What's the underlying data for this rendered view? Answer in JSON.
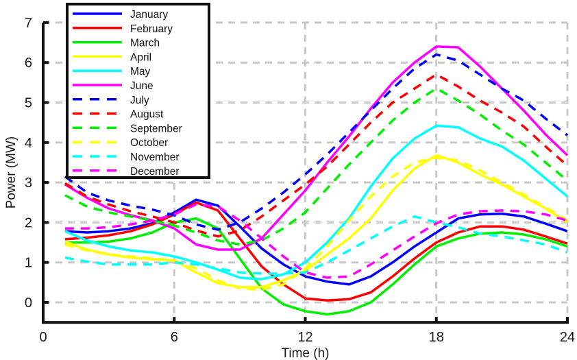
{
  "chart_data": {
    "type": "line",
    "title": "",
    "xlabel": "Time (h)",
    "ylabel": "Power (MW)",
    "xlim": [
      0,
      24
    ],
    "ylim": [
      -0.5,
      7
    ],
    "xticks": [
      0,
      6,
      12,
      18,
      24
    ],
    "yticks": [
      0,
      1,
      2,
      3,
      4,
      5,
      6,
      7
    ],
    "grid": true,
    "legend_position": "top-left",
    "x": [
      1,
      2,
      3,
      4,
      5,
      6,
      7,
      8,
      9,
      10,
      11,
      12,
      13,
      14,
      15,
      16,
      17,
      18,
      19,
      20,
      21,
      22,
      23,
      24
    ],
    "series": [
      {
        "name": "January",
        "color": "#0000ff",
        "style": "solid",
        "values": [
          1.78,
          1.75,
          1.78,
          1.85,
          1.98,
          2.25,
          2.57,
          2.42,
          1.9,
          1.35,
          0.95,
          0.65,
          0.52,
          0.45,
          0.65,
          1.0,
          1.4,
          1.75,
          2.1,
          2.2,
          2.22,
          2.15,
          1.97,
          1.78
        ]
      },
      {
        "name": "February",
        "color": "#ff0000",
        "style": "solid",
        "values": [
          1.58,
          1.62,
          1.68,
          1.78,
          1.95,
          2.2,
          2.5,
          2.3,
          1.6,
          0.9,
          0.45,
          0.1,
          0.05,
          0.08,
          0.25,
          0.65,
          1.1,
          1.5,
          1.75,
          1.9,
          1.9,
          1.82,
          1.65,
          1.47
        ]
      },
      {
        "name": "March",
        "color": "#00ee00",
        "style": "solid",
        "values": [
          1.5,
          1.5,
          1.52,
          1.6,
          1.75,
          2.0,
          2.1,
          1.85,
          1.1,
          0.35,
          -0.05,
          -0.22,
          -0.3,
          -0.22,
          0.0,
          0.45,
          0.95,
          1.4,
          1.6,
          1.72,
          1.75,
          1.7,
          1.58,
          1.4
        ]
      },
      {
        "name": "April",
        "color": "#ffff00",
        "style": "solid",
        "values": [
          1.52,
          1.32,
          1.2,
          1.12,
          1.08,
          1.05,
          0.75,
          0.48,
          0.38,
          0.38,
          0.55,
          0.8,
          1.2,
          1.6,
          2.1,
          2.8,
          3.35,
          3.68,
          3.5,
          3.2,
          2.95,
          2.65,
          2.35,
          2.0
        ]
      },
      {
        "name": "May",
        "color": "#00ffff",
        "style": "solid",
        "values": [
          1.78,
          1.55,
          1.4,
          1.3,
          1.25,
          1.15,
          1.0,
          0.82,
          0.62,
          0.58,
          0.7,
          1.0,
          1.5,
          2.1,
          2.9,
          3.6,
          4.1,
          4.42,
          4.38,
          4.1,
          3.9,
          3.55,
          3.1,
          2.65
        ]
      },
      {
        "name": "June",
        "color": "#ff00ff",
        "style": "solid",
        "values": [
          2.95,
          2.62,
          2.35,
          2.18,
          2.05,
          1.85,
          1.45,
          1.32,
          1.32,
          1.6,
          2.2,
          2.8,
          3.5,
          4.15,
          4.85,
          5.5,
          6.0,
          6.4,
          6.38,
          5.9,
          5.35,
          4.8,
          4.2,
          3.68
        ]
      },
      {
        "name": "July",
        "color": "#0000ff",
        "style": "dashed",
        "values": [
          3.15,
          2.75,
          2.55,
          2.42,
          2.32,
          2.18,
          1.95,
          1.82,
          2.0,
          2.35,
          2.75,
          3.2,
          3.7,
          4.25,
          4.8,
          5.35,
          5.85,
          6.2,
          6.05,
          5.7,
          5.35,
          5.05,
          4.6,
          4.18
        ]
      },
      {
        "name": "August",
        "color": "#ff0000",
        "style": "dashed",
        "values": [
          2.98,
          2.65,
          2.45,
          2.28,
          2.15,
          2.0,
          1.8,
          1.65,
          1.8,
          2.15,
          2.55,
          2.95,
          3.4,
          3.95,
          4.5,
          5.0,
          5.35,
          5.7,
          5.4,
          5.05,
          4.75,
          4.4,
          3.9,
          3.42
        ]
      },
      {
        "name": "September",
        "color": "#00ee00",
        "style": "dashed",
        "values": [
          2.68,
          2.4,
          2.25,
          2.15,
          2.05,
          1.92,
          1.75,
          1.55,
          1.45,
          1.55,
          1.85,
          2.25,
          2.85,
          3.45,
          4.0,
          4.55,
          5.0,
          5.35,
          5.05,
          4.7,
          4.3,
          3.95,
          3.5,
          3.05
        ]
      },
      {
        "name": "October",
        "color": "#ffff00",
        "style": "dashed",
        "values": [
          1.45,
          1.3,
          1.2,
          1.15,
          1.1,
          1.05,
          0.85,
          0.55,
          0.35,
          0.32,
          0.45,
          0.85,
          1.4,
          2.05,
          2.65,
          3.15,
          3.5,
          3.62,
          3.55,
          3.3,
          3.0,
          2.7,
          2.38,
          2.05
        ]
      },
      {
        "name": "November",
        "color": "#00ffff",
        "style": "dashed",
        "values": [
          1.12,
          1.02,
          0.95,
          0.95,
          0.95,
          1.0,
          0.95,
          0.85,
          0.75,
          0.72,
          0.72,
          0.75,
          1.0,
          1.3,
          1.6,
          1.9,
          2.15,
          2.0,
          1.88,
          1.72,
          1.65,
          1.55,
          1.45,
          1.25
        ]
      },
      {
        "name": "December",
        "color": "#ff00ff",
        "style": "dashed",
        "values": [
          1.85,
          1.85,
          1.88,
          1.95,
          2.05,
          2.2,
          2.45,
          2.4,
          2.05,
          1.6,
          1.15,
          0.75,
          0.62,
          0.65,
          0.95,
          1.3,
          1.65,
          1.98,
          2.2,
          2.28,
          2.3,
          2.28,
          2.2,
          2.05
        ]
      }
    ]
  }
}
